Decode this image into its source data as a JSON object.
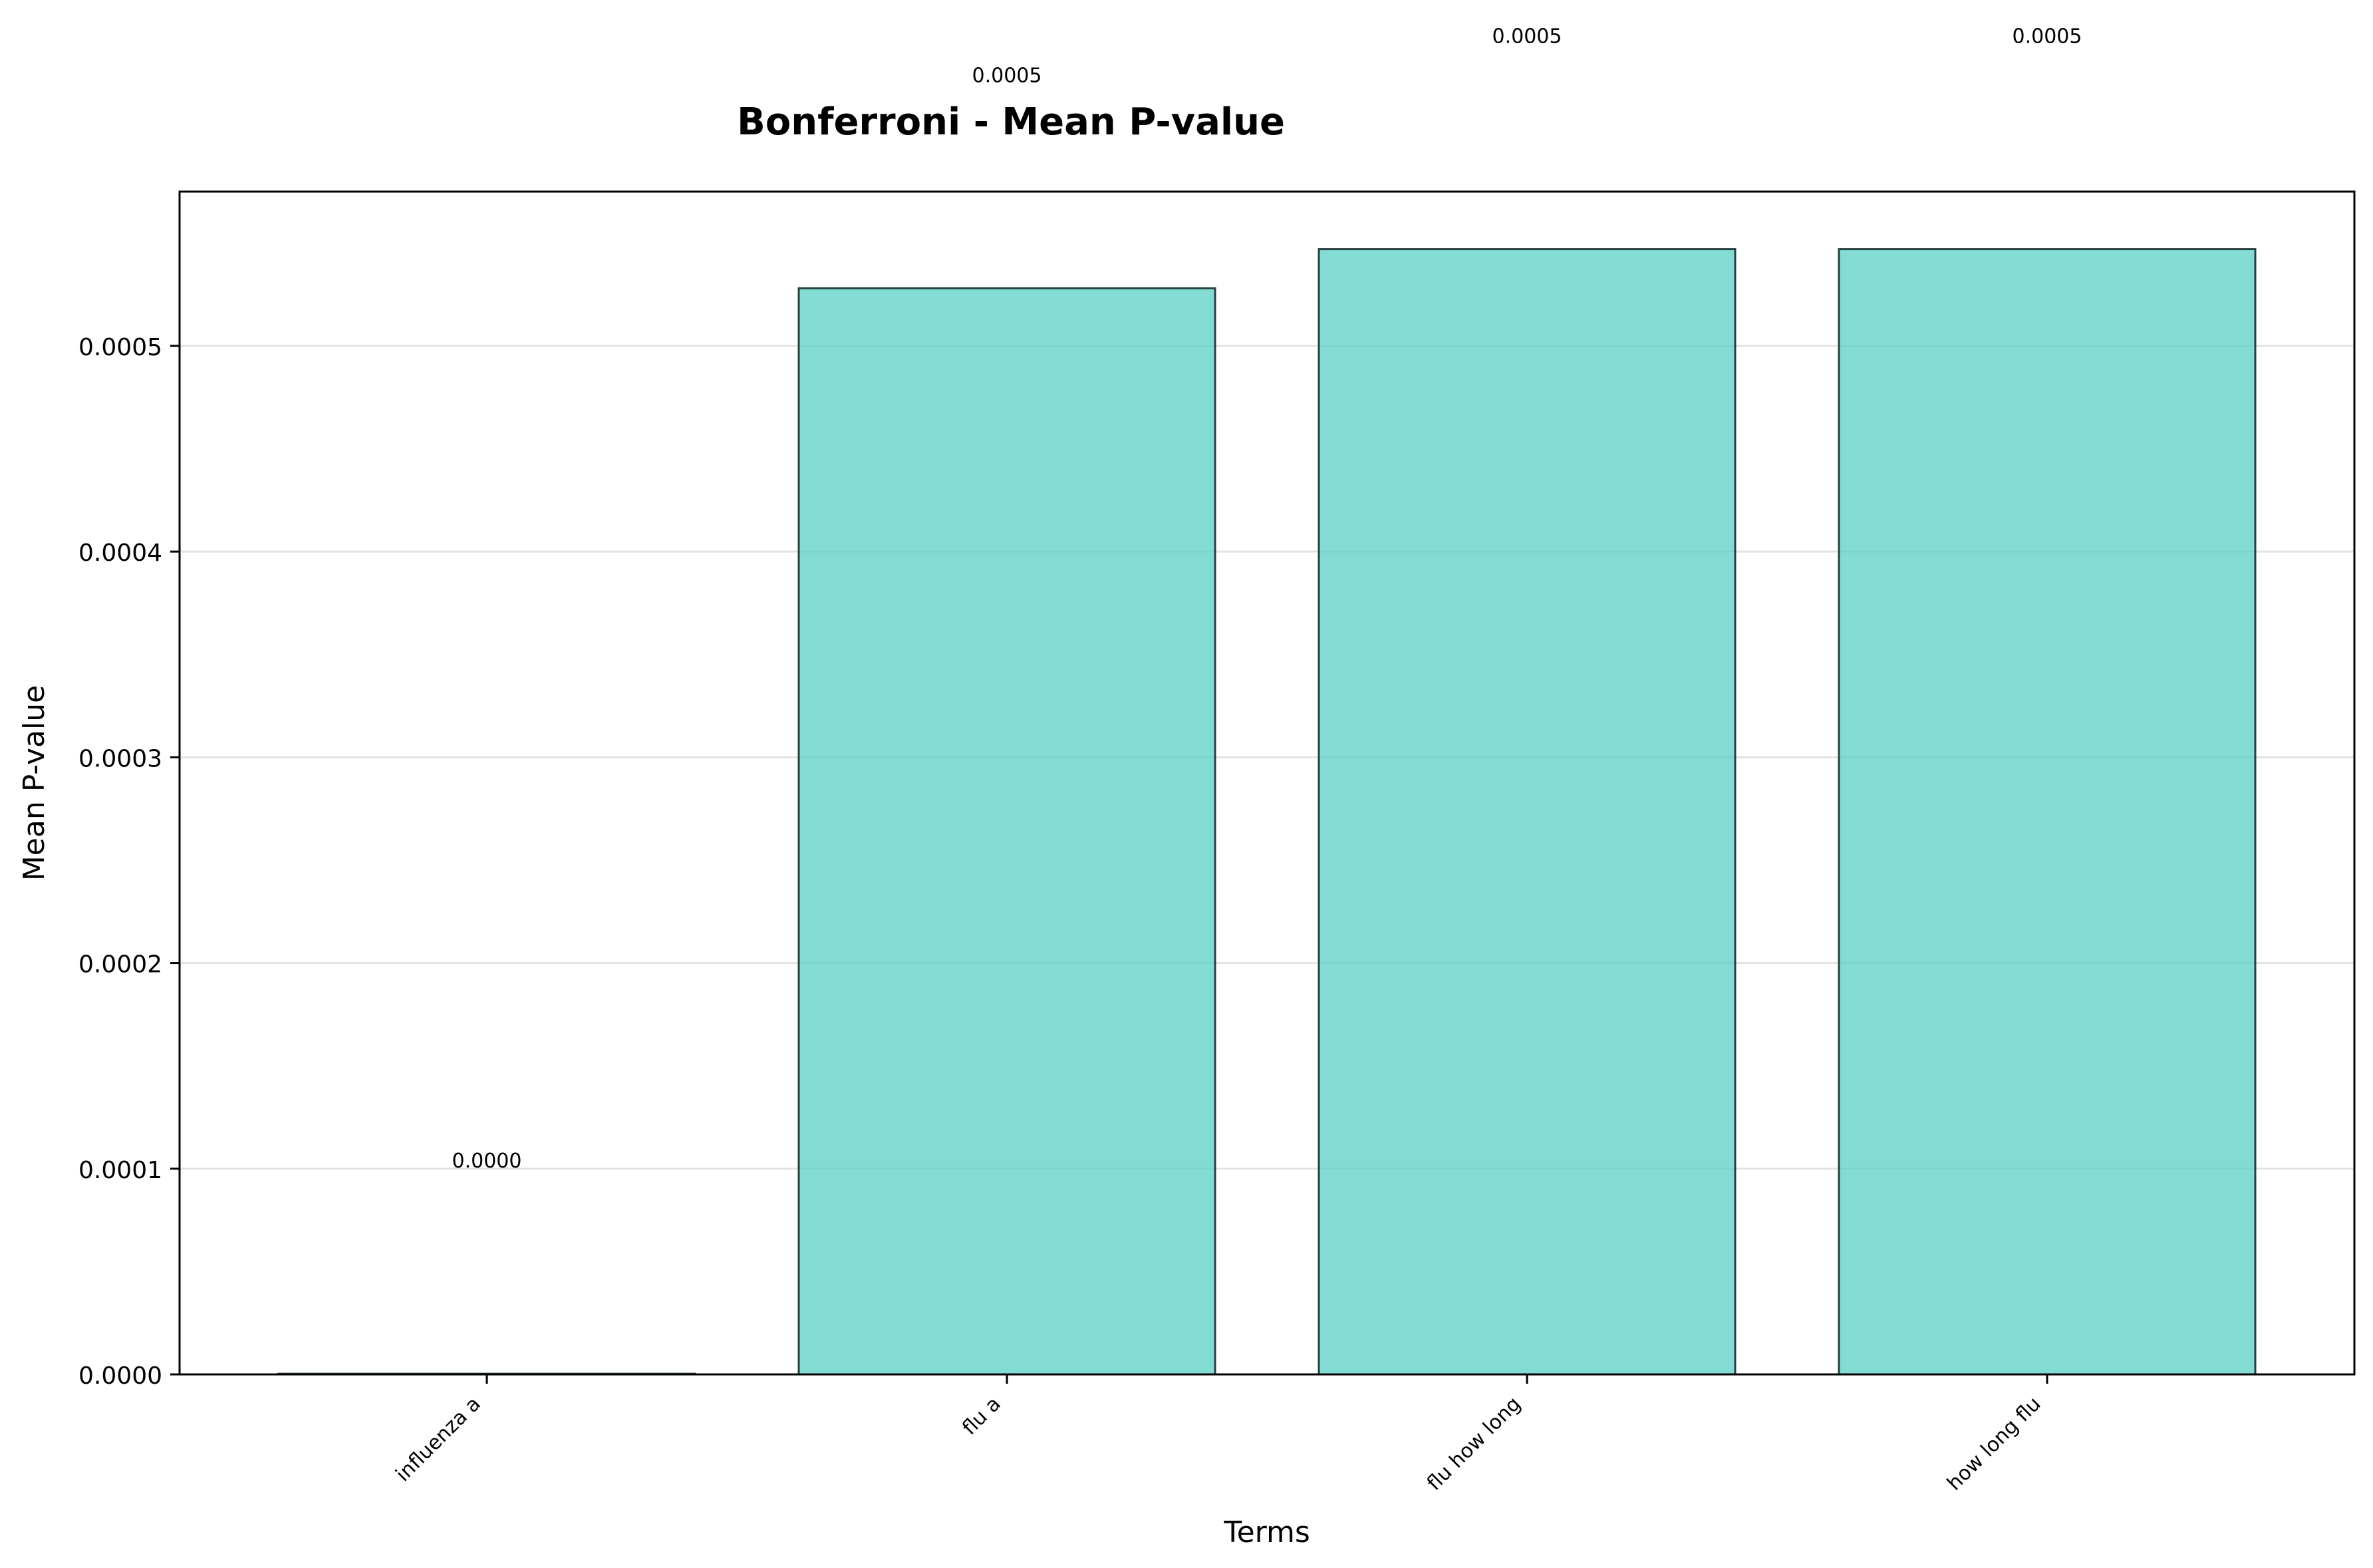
{
  "chart_data": {
    "type": "bar",
    "title": "Bonferroni - Mean P-value",
    "xlabel": "Terms",
    "ylabel": "Mean P-value",
    "categories": [
      "influenza a",
      "flu a",
      "flu how long",
      "how long flu"
    ],
    "values": [
      3e-07,
      0.000528,
      0.000547,
      0.000547
    ],
    "value_labels": [
      "0.0000",
      "0.0005",
      "0.0005",
      "0.0005"
    ],
    "ylim": [
      0,
      0.000575
    ],
    "yticks": [
      0,
      0.0001,
      0.0002,
      0.0003,
      0.0004,
      0.0005
    ],
    "ytick_labels": [
      "0.0000",
      "0.0001",
      "0.0002",
      "0.0003",
      "0.0004",
      "0.0005"
    ],
    "grid": "y",
    "bar_color": "#5ad0c5",
    "bar_edge_color": "#264040"
  }
}
